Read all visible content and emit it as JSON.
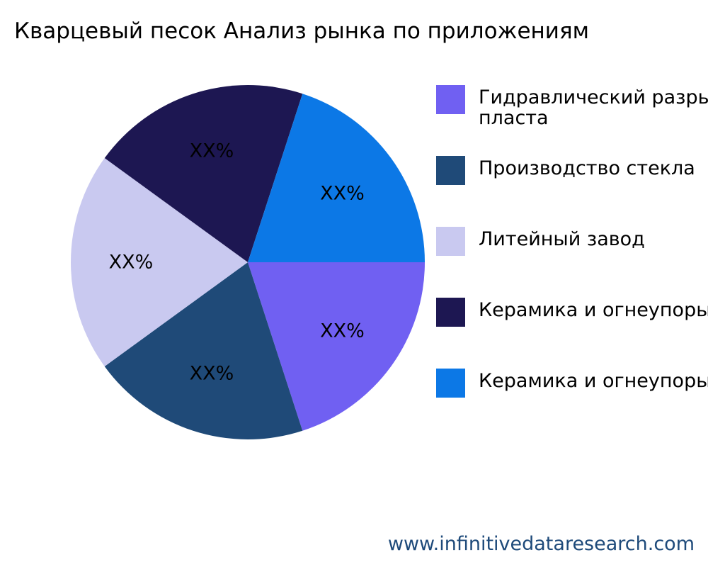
{
  "title": "Кварцевый песок Анализ рынка по приложениям",
  "watermark": "www.infinitivedataresearch.com",
  "chart_data": {
    "type": "pie",
    "legend_position": "right",
    "slices": [
      {
        "label": "Гидравлический разрыв\nпласта",
        "value": 20,
        "data_label": "XX%",
        "color": "#7060f2"
      },
      {
        "label": "Производство стекла",
        "value": 20,
        "data_label": "XX%",
        "color": "#1f4a78"
      },
      {
        "label": "Литейный завод",
        "value": 20,
        "data_label": "XX%",
        "color": "#c9c9f0"
      },
      {
        "label": "Керамика и огнеупоры",
        "value": 20,
        "data_label": "XX%",
        "color": "#1d1752"
      },
      {
        "label": "Керамика и огнеупоры",
        "value": 20,
        "data_label": "XX%",
        "color": "#0c78e6"
      }
    ]
  }
}
